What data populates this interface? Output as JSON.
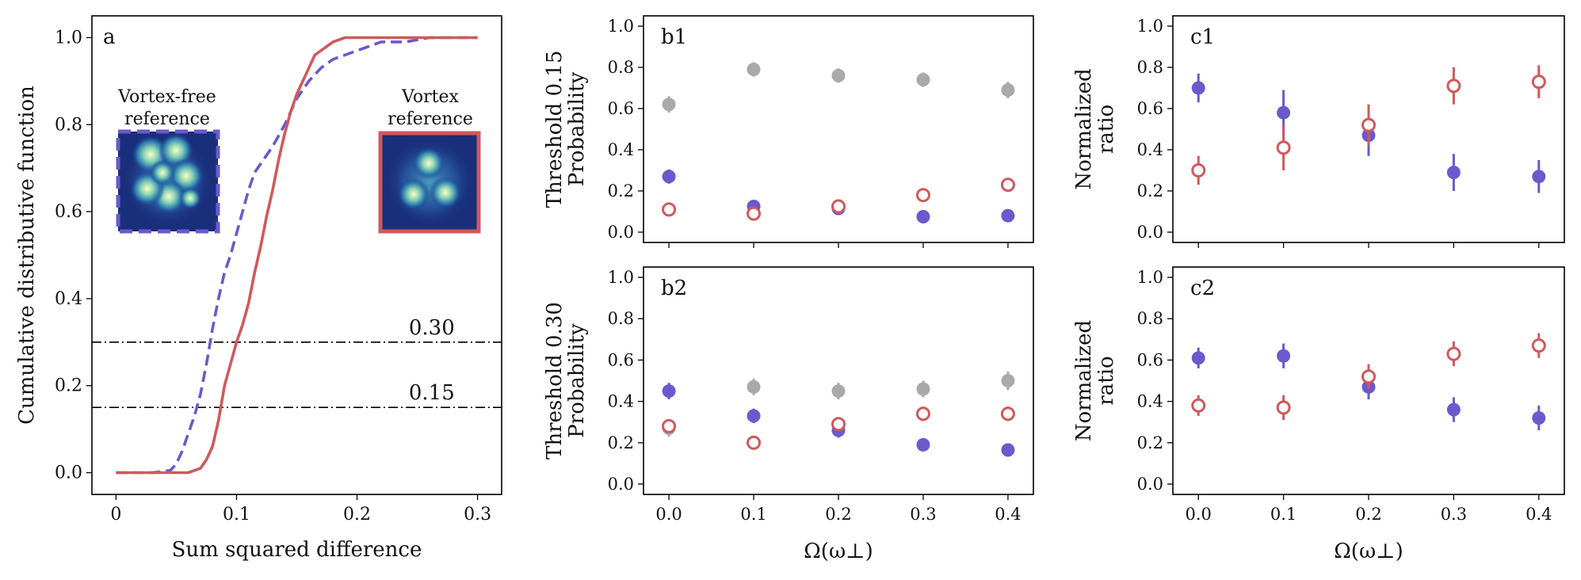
{
  "colors": {
    "purple": "#6a5acd",
    "red": "#d0595b",
    "gray": "#a9a9a9",
    "axis": "#000000"
  },
  "chart_data": [
    {
      "id": "a",
      "type": "line",
      "panel_label": "a",
      "xlabel": "Sum squared difference",
      "ylabel": "Cumulative distributive function",
      "xlim": [
        -0.02,
        0.32
      ],
      "ylim": [
        -0.05,
        1.05
      ],
      "xticks": [
        0.0,
        0.1,
        0.2,
        0.3
      ],
      "xtick_labels": [
        "0",
        "0.1",
        "0.2",
        "0.3"
      ],
      "yticks": [
        0.0,
        0.2,
        0.4,
        0.6,
        0.8,
        1.0
      ],
      "ytick_labels": [
        "0.0",
        "0.2",
        "0.4",
        "0.6",
        "0.8",
        "1.0"
      ],
      "series": [
        {
          "key": "vortex_free",
          "style": "dashed",
          "color": "#6a5acd",
          "x": [
            0.0,
            0.03,
            0.045,
            0.05,
            0.055,
            0.06,
            0.065,
            0.07,
            0.075,
            0.08,
            0.085,
            0.09,
            0.095,
            0.1,
            0.105,
            0.11,
            0.115,
            0.12,
            0.13,
            0.14,
            0.15,
            0.16,
            0.17,
            0.18,
            0.19,
            0.2,
            0.21,
            0.22,
            0.24,
            0.26,
            0.28,
            0.3
          ],
          "y": [
            0.0,
            0.0,
            0.005,
            0.02,
            0.05,
            0.09,
            0.13,
            0.18,
            0.25,
            0.33,
            0.4,
            0.46,
            0.5,
            0.55,
            0.6,
            0.65,
            0.69,
            0.71,
            0.75,
            0.8,
            0.86,
            0.9,
            0.93,
            0.95,
            0.96,
            0.97,
            0.98,
            0.99,
            0.99,
            1.0,
            1.0,
            1.0
          ]
        },
        {
          "key": "vortex",
          "style": "solid",
          "color": "#d0595b",
          "x": [
            0.0,
            0.06,
            0.07,
            0.075,
            0.08,
            0.085,
            0.09,
            0.095,
            0.1,
            0.105,
            0.11,
            0.115,
            0.12,
            0.125,
            0.13,
            0.135,
            0.14,
            0.145,
            0.15,
            0.155,
            0.16,
            0.165,
            0.17,
            0.175,
            0.18,
            0.19,
            0.2,
            0.22,
            0.25,
            0.3
          ],
          "y": [
            0.0,
            0.0,
            0.01,
            0.03,
            0.06,
            0.12,
            0.2,
            0.25,
            0.3,
            0.34,
            0.39,
            0.46,
            0.52,
            0.59,
            0.65,
            0.72,
            0.78,
            0.83,
            0.87,
            0.9,
            0.93,
            0.96,
            0.97,
            0.98,
            0.99,
            1.0,
            1.0,
            1.0,
            1.0,
            1.0
          ]
        }
      ],
      "hlines": [
        {
          "y": 0.3,
          "label": "0.30"
        },
        {
          "y": 0.15,
          "label": "0.15"
        }
      ],
      "insets": [
        {
          "key": "vortex_free",
          "title_lines": [
            "Vortex-free",
            "reference"
          ],
          "border_color": "#6a5acd",
          "border_style": "dashed"
        },
        {
          "key": "vortex",
          "title_lines": [
            "Vortex",
            "reference"
          ],
          "border_color": "#d0595b",
          "border_style": "solid"
        }
      ]
    },
    {
      "id": "b1",
      "type": "scatter",
      "panel_label": "b1",
      "ylabel_lines": [
        "Threshold 0.15",
        "Probability"
      ],
      "xlabel": "",
      "ylim": [
        -0.05,
        1.05
      ],
      "xlim": [
        -0.03,
        0.43
      ],
      "x": [
        0.0,
        0.1,
        0.2,
        0.3,
        0.4
      ],
      "series": [
        {
          "key": "gray",
          "marker": "filled",
          "color": "#a9a9a9",
          "values": [
            0.62,
            0.79,
            0.76,
            0.74,
            0.69
          ],
          "err": [
            0.04,
            0.035,
            0.035,
            0.035,
            0.04
          ]
        },
        {
          "key": "purple",
          "marker": "filled",
          "color": "#6a5acd",
          "values": [
            0.27,
            0.125,
            0.115,
            0.075,
            0.08
          ],
          "err": [
            0.035,
            0.02,
            0.02,
            0.015,
            0.015
          ]
        },
        {
          "key": "red",
          "marker": "open",
          "color": "#d0595b",
          "values": [
            0.11,
            0.09,
            0.125,
            0.18,
            0.23
          ],
          "err": [
            0.015,
            0.015,
            0.02,
            0.02,
            0.025
          ]
        }
      ]
    },
    {
      "id": "c1",
      "type": "scatter",
      "panel_label": "c1",
      "ylabel_lines": [
        "Normalized",
        "ratio"
      ],
      "xlabel": "",
      "ylim": [
        -0.05,
        1.05
      ],
      "xlim": [
        -0.03,
        0.43
      ],
      "x": [
        0.0,
        0.1,
        0.2,
        0.3,
        0.4
      ],
      "series": [
        {
          "key": "purple",
          "marker": "filled",
          "color": "#6a5acd",
          "values": [
            0.7,
            0.58,
            0.47,
            0.29,
            0.27
          ],
          "err": [
            0.07,
            0.11,
            0.1,
            0.09,
            0.08
          ]
        },
        {
          "key": "red",
          "marker": "open",
          "color": "#d0595b",
          "values": [
            0.3,
            0.41,
            0.52,
            0.71,
            0.73
          ],
          "err": [
            0.07,
            0.11,
            0.1,
            0.09,
            0.08
          ]
        }
      ]
    },
    {
      "id": "b2",
      "type": "scatter",
      "panel_label": "b2",
      "ylabel_lines": [
        "Threshold 0.30",
        "Probability"
      ],
      "xlabel": "Ω(ω⊥)",
      "ylim": [
        -0.05,
        1.05
      ],
      "xlim": [
        -0.03,
        0.43
      ],
      "x": [
        0.0,
        0.1,
        0.2,
        0.3,
        0.4
      ],
      "series": [
        {
          "key": "gray",
          "marker": "filled",
          "color": "#a9a9a9",
          "values": [
            0.27,
            0.47,
            0.45,
            0.46,
            0.5
          ],
          "err": [
            0.04,
            0.04,
            0.04,
            0.04,
            0.045
          ]
        },
        {
          "key": "purple",
          "marker": "filled",
          "color": "#6a5acd",
          "values": [
            0.45,
            0.33,
            0.26,
            0.19,
            0.165
          ],
          "err": [
            0.04,
            0.035,
            0.035,
            0.025,
            0.025
          ]
        },
        {
          "key": "red",
          "marker": "open",
          "color": "#d0595b",
          "values": [
            0.28,
            0.2,
            0.29,
            0.34,
            0.34
          ],
          "err": [
            0.03,
            0.02,
            0.03,
            0.035,
            0.035
          ]
        }
      ]
    },
    {
      "id": "c2",
      "type": "scatter",
      "panel_label": "c2",
      "ylabel_lines": [
        "Normalized",
        "ratio"
      ],
      "xlabel": "Ω(ω⊥)",
      "ylim": [
        -0.05,
        1.05
      ],
      "xlim": [
        -0.03,
        0.43
      ],
      "x": [
        0.0,
        0.1,
        0.2,
        0.3,
        0.4
      ],
      "series": [
        {
          "key": "purple",
          "marker": "filled",
          "color": "#6a5acd",
          "values": [
            0.61,
            0.62,
            0.47,
            0.36,
            0.32
          ],
          "err": [
            0.05,
            0.06,
            0.06,
            0.06,
            0.06
          ]
        },
        {
          "key": "red",
          "marker": "open",
          "color": "#d0595b",
          "values": [
            0.38,
            0.37,
            0.52,
            0.63,
            0.67
          ],
          "err": [
            0.05,
            0.06,
            0.06,
            0.06,
            0.06
          ]
        }
      ]
    }
  ],
  "small_panel_ticks": {
    "xticks": [
      0.0,
      0.1,
      0.2,
      0.3,
      0.4
    ],
    "xtick_labels": [
      "0.0",
      "0.1",
      "0.2",
      "0.3",
      "0.4"
    ],
    "yticks": [
      0.0,
      0.2,
      0.4,
      0.6,
      0.8,
      1.0
    ],
    "ytick_labels": [
      "0.0",
      "0.2",
      "0.4",
      "0.6",
      "0.8",
      "1.0"
    ]
  }
}
